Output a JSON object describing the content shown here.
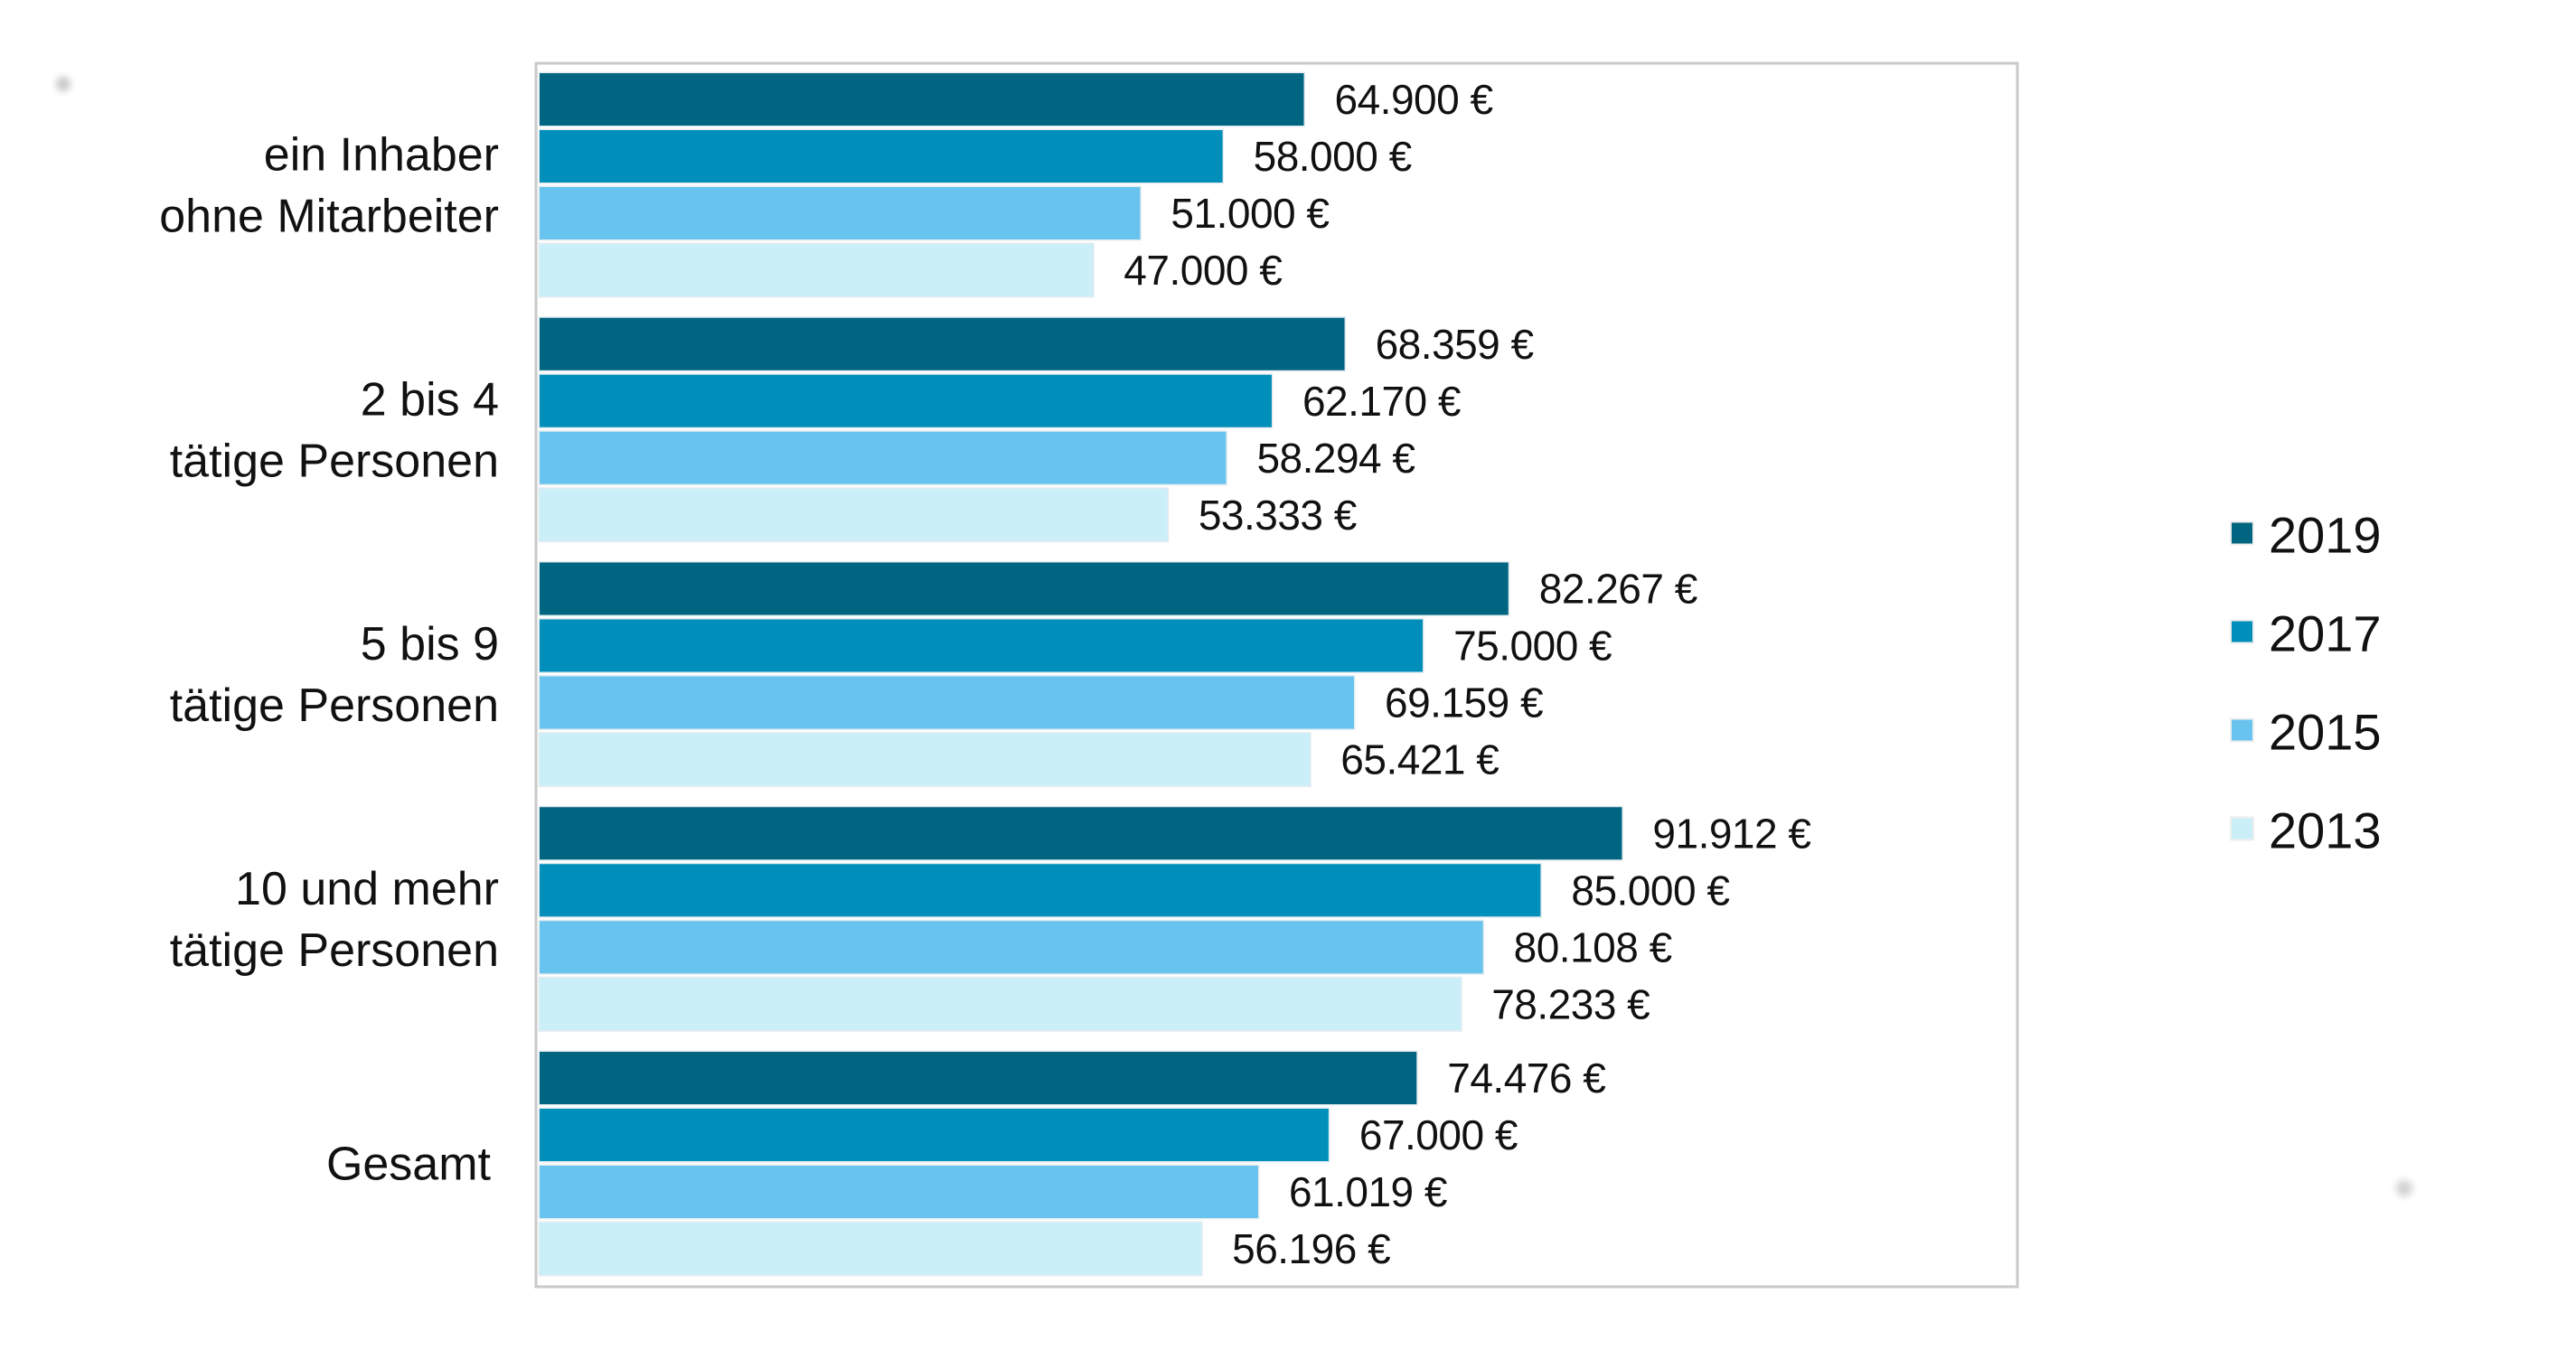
{
  "chart_data": {
    "type": "bar",
    "orientation": "horizontal",
    "title": "",
    "xlabel": "",
    "ylabel": "",
    "categories": [
      [
        "ein Inhaber",
        "ohne Mitarbeiter"
      ],
      [
        "2 bis 4",
        "tätige Personen"
      ],
      [
        "5 bis 9",
        "tätige Personen"
      ],
      [
        "10 und mehr",
        "tätige Personen"
      ],
      [
        "Gesamt"
      ]
    ],
    "series": [
      {
        "name": "2019",
        "color": "#006580",
        "values": [
          64900,
          68359,
          82267,
          91912,
          74476
        ],
        "labels": [
          "64.900 €",
          "68.359 €",
          "82.267 €",
          "91.912 €",
          "74.476 €"
        ]
      },
      {
        "name": "2017",
        "color": "#008fba",
        "values": [
          58000,
          62170,
          75000,
          85000,
          67000
        ],
        "labels": [
          "58.000 €",
          "62.170 €",
          "75.000 €",
          "85.000 €",
          "67.000 €"
        ]
      },
      {
        "name": "2015",
        "color": "#68c4ee",
        "values": [
          51000,
          58294,
          69159,
          80108,
          61019
        ],
        "labels": [
          "51.000 €",
          "58.294 €",
          "69.159 €",
          "80.108 €",
          "61.019 €"
        ]
      },
      {
        "name": "2013",
        "color": "#cbeff8",
        "values": [
          47000,
          53333,
          65421,
          78233,
          56196
        ],
        "labels": [
          "47.000 €",
          "53.333 €",
          "65.421 €",
          "78.233 €",
          "56.196 €"
        ]
      }
    ],
    "xlim": [
      0,
      125500
    ],
    "value_axis_visible": false,
    "grid": false,
    "legend": {
      "placement": "right",
      "entries": [
        "2019",
        "2017",
        "2015",
        "2013"
      ]
    },
    "currency": "€"
  }
}
